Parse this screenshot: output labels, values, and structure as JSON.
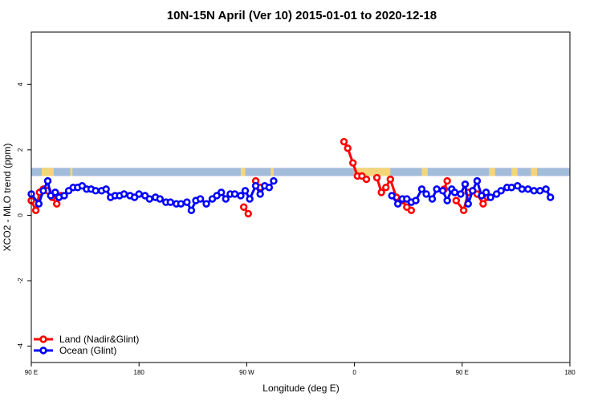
{
  "chart_data": {
    "type": "line",
    "title": "10N-15N April (Ver 10)   2015-01-01 to 2020-12-18",
    "xlabel": "Longitude (deg E)",
    "ylabel": "XCO2 - MLO trend (ppm)",
    "xlim": [
      90,
      450
    ],
    "ylim": [
      -4.5,
      5.6
    ],
    "x_ticks": [
      {
        "value": 90,
        "label": "90 E"
      },
      {
        "value": 162,
        "label": "180"
      },
      {
        "value": 234,
        "label": "90 W"
      },
      {
        "value": 306,
        "label": "0"
      },
      {
        "value": 378,
        "label": "90 E"
      },
      {
        "value": 450,
        "label": "180"
      }
    ],
    "y_ticks": [
      {
        "value": -4,
        "label": "-4"
      },
      {
        "value": -2,
        "label": "-2"
      },
      {
        "value": 0,
        "label": "0"
      },
      {
        "value": 2,
        "label": "2"
      },
      {
        "value": 4,
        "label": "4"
      }
    ],
    "land_strip": {
      "y_bottom": 1.2,
      "y_top": 1.45,
      "ocean_color": "#a4bcdc",
      "land_color": "#f5d57a",
      "land_ranges": [
        [
          97,
          105
        ],
        [
          116,
          117.5
        ],
        [
          230,
          233
        ],
        [
          250,
          252
        ],
        [
          306,
          330
        ],
        [
          351,
          355
        ],
        [
          396,
          400
        ],
        [
          411,
          415
        ],
        [
          424,
          428
        ]
      ]
    },
    "series": [
      {
        "name": "Land (Nadir&Glint)",
        "color": "#ff0000",
        "segments": [
          [
            [
              90,
              0.45
            ],
            [
              93,
              0.15
            ],
            [
              95.5,
              0.7
            ],
            [
              98,
              0.8
            ],
            [
              101,
              0.75
            ],
            [
              104,
              0.55
            ],
            [
              107,
              0.35
            ],
            [
              110,
              0.6
            ]
          ],
          [
            [
              232,
              0.25
            ],
            [
              235,
              0.05
            ]
          ],
          [
            [
              240,
              1.05
            ],
            [
              243,
              0.85
            ]
          ],
          [
            [
              299,
              2.25
            ],
            [
              301.5,
              2.05
            ],
            [
              305,
              1.6
            ],
            [
              308,
              1.2
            ],
            [
              311,
              1.2
            ],
            [
              314,
              1.1
            ]
          ],
          [
            [
              321,
              1.15
            ],
            [
              324,
              0.7
            ],
            [
              327,
              0.85
            ],
            [
              330,
              1.1
            ],
            [
              334,
              0.55
            ],
            [
              338,
              0.45
            ],
            [
              341,
              0.25
            ],
            [
              344,
              0.15
            ]
          ],
          [
            [
              366,
              0.8
            ],
            [
              368,
              1.05
            ]
          ],
          [
            [
              374,
              0.45
            ],
            [
              379,
              0.15
            ],
            [
              382,
              0.7
            ],
            [
              385,
              0.75
            ],
            [
              388,
              0.65
            ],
            [
              392,
              0.35
            ],
            [
              395,
              0.55
            ]
          ]
        ]
      },
      {
        "name": "Ocean (Glint)",
        "color": "#0000ff",
        "segments": [
          [
            [
              90,
              0.65
            ],
            [
              95,
              0.35
            ],
            [
              98,
              0.75
            ],
            [
              101,
              1.05
            ],
            [
              103,
              0.6
            ],
            [
              106,
              0.7
            ],
            [
              108.5,
              0.55
            ],
            [
              112,
              0.6
            ],
            [
              115,
              0.75
            ],
            [
              118,
              0.85
            ],
            [
              121,
              0.85
            ],
            [
              124,
              0.9
            ],
            [
              127,
              0.8
            ],
            [
              130,
              0.8
            ],
            [
              133,
              0.75
            ],
            [
              137,
              0.75
            ],
            [
              140,
              0.8
            ],
            [
              143,
              0.55
            ],
            [
              146,
              0.6
            ],
            [
              149,
              0.6
            ],
            [
              152,
              0.65
            ],
            [
              156,
              0.6
            ],
            [
              159,
              0.55
            ],
            [
              162,
              0.65
            ],
            [
              166,
              0.6
            ],
            [
              169,
              0.5
            ],
            [
              173,
              0.55
            ],
            [
              176,
              0.5
            ],
            [
              180,
              0.4
            ],
            [
              183,
              0.4
            ],
            [
              187,
              0.35
            ],
            [
              190,
              0.35
            ],
            [
              194,
              0.4
            ],
            [
              197,
              0.15
            ],
            [
              200,
              0.45
            ],
            [
              203,
              0.5
            ],
            [
              207,
              0.35
            ],
            [
              211,
              0.5
            ],
            [
              214,
              0.6
            ],
            [
              217,
              0.7
            ],
            [
              220,
              0.5
            ],
            [
              223,
              0.65
            ],
            [
              226,
              0.65
            ],
            [
              230,
              0.6
            ],
            [
              233,
              0.75
            ],
            [
              236,
              0.5
            ],
            [
              240,
              0.9
            ],
            [
              243,
              0.65
            ],
            [
              246,
              0.9
            ],
            [
              249,
              0.85
            ],
            [
              252,
              1.05
            ]
          ],
          [
            [
              331,
              0.6
            ],
            [
              335,
              0.35
            ],
            [
              338,
              0.5
            ],
            [
              341,
              0.5
            ],
            [
              344,
              0.4
            ],
            [
              347,
              0.45
            ],
            [
              351,
              0.8
            ],
            [
              354,
              0.65
            ],
            [
              358,
              0.5
            ],
            [
              361,
              0.8
            ],
            [
              365,
              0.75
            ],
            [
              368,
              0.45
            ],
            [
              371,
              0.8
            ],
            [
              373,
              0.7
            ],
            [
              377,
              0.65
            ],
            [
              380,
              0.95
            ],
            [
              382,
              0.35
            ],
            [
              385,
              0.75
            ],
            [
              388,
              1.05
            ],
            [
              391,
              0.6
            ],
            [
              394,
              0.7
            ],
            [
              397,
              0.55
            ],
            [
              401,
              0.65
            ],
            [
              404,
              0.75
            ],
            [
              408,
              0.85
            ],
            [
              411,
              0.85
            ],
            [
              415,
              0.9
            ],
            [
              418,
              0.8
            ],
            [
              422,
              0.8
            ],
            [
              426,
              0.75
            ],
            [
              430,
              0.75
            ],
            [
              434,
              0.8
            ],
            [
              437,
              0.55
            ]
          ]
        ]
      }
    ],
    "legend": {
      "position": "bottom-left"
    },
    "grid": false
  }
}
